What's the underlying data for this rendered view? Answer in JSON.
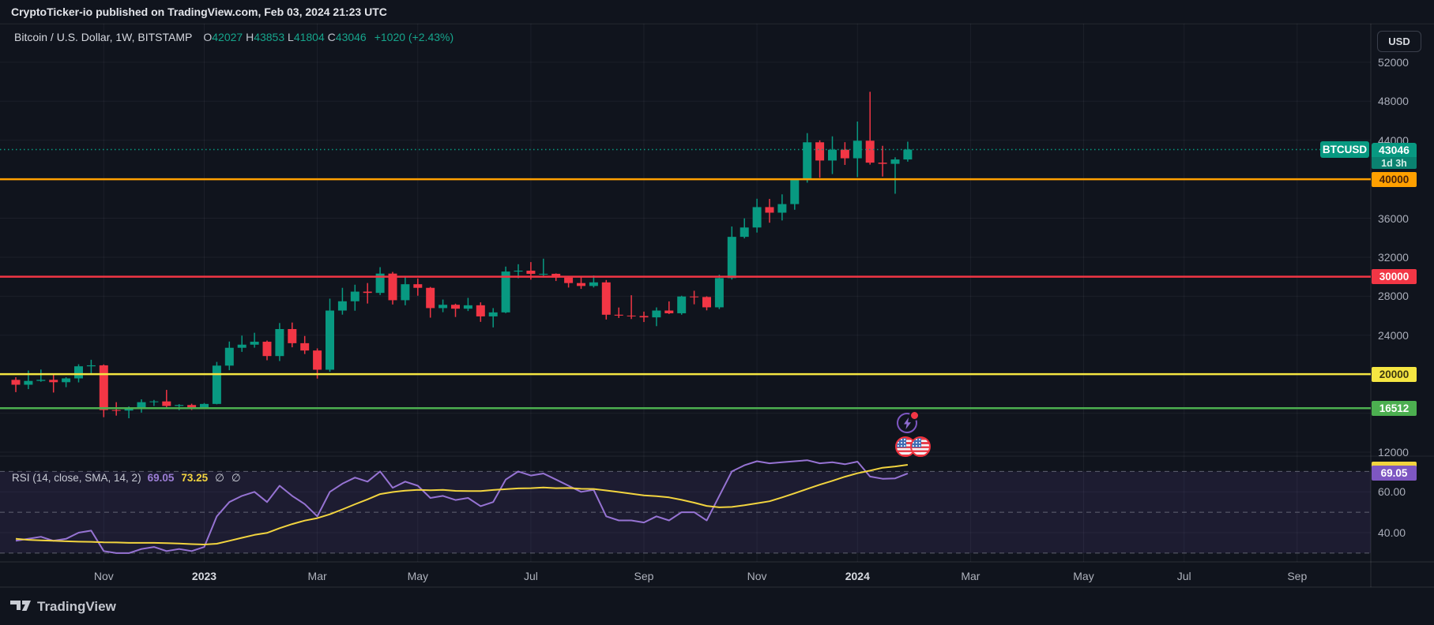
{
  "attribution": "CryptoTicker-io published on TradingView.com, Feb 03, 2024 21:23 UTC",
  "currency_selector": "USD",
  "symbol_legend": {
    "title": "Bitcoin / U.S. Dollar, 1W, BITSTAMP",
    "open_label": "O",
    "open": "42027",
    "high_label": "H",
    "high": "43853",
    "low_label": "L",
    "low": "41804",
    "close_label": "C",
    "close": "43046",
    "change": "+1020 (+2.43%)"
  },
  "rsi_legend": {
    "title": "RSI (14, close, SMA, 14, 2)",
    "rsi_value": "69.05",
    "sma_value": "73.25",
    "band_upper": "∅",
    "band_lower": "∅"
  },
  "price_axis": {
    "symbol_badge": "BTCUSD",
    "last_price": "43046",
    "countdown": "1d 3h",
    "level_labels": {
      "orange": "40000",
      "red": "30000",
      "yellow": "20000",
      "green": "16512"
    },
    "rsi_badge": "69.05",
    "ticks": [
      "52000",
      "48000",
      "44000",
      "36000",
      "32000",
      "28000",
      "24000",
      "12000"
    ],
    "rsi_ticks": [
      "60.00",
      "40.00"
    ]
  },
  "footer": {
    "brand": "TradingView"
  },
  "markers": {
    "flash_icon": "idea-flash-marker with red notification dot",
    "flag_icons": "two US economic event markers"
  },
  "chart_data": {
    "type": "candlestick",
    "symbol": "BTCUSD",
    "interval": "1W",
    "exchange": "BITSTAMP",
    "title": "Bitcoin / U.S. Dollar weekly chart with RSI",
    "ohlc_current": {
      "open": 42027,
      "high": 43853,
      "low": 41804,
      "close": 43046,
      "change": 1020,
      "change_pct": 2.43
    },
    "first_candle_week": "2022-09-19",
    "last_candle_week": "2024-01-29",
    "price_grid": [
      52000,
      48000,
      44000,
      40000,
      36000,
      32000,
      28000,
      24000,
      20000,
      16000,
      12000
    ],
    "time_labels": [
      {
        "text": "Nov",
        "week": 7,
        "bold": false
      },
      {
        "text": "2023",
        "week": 15,
        "bold": true
      },
      {
        "text": "Mar",
        "week": 24,
        "bold": false
      },
      {
        "text": "May",
        "week": 32,
        "bold": false
      },
      {
        "text": "Jul",
        "week": 41,
        "bold": false
      },
      {
        "text": "Sep",
        "week": 50,
        "bold": false
      },
      {
        "text": "Nov",
        "week": 59,
        "bold": false
      },
      {
        "text": "2024",
        "week": 67,
        "bold": true
      },
      {
        "text": "Mar",
        "week": 76,
        "bold": false
      },
      {
        "text": "May",
        "week": 85,
        "bold": false
      },
      {
        "text": "Jul",
        "week": 93,
        "bold": false
      },
      {
        "text": "Sep",
        "week": 102,
        "bold": false
      }
    ],
    "horizontal_levels": [
      {
        "price": 40000,
        "color": "#FFA000"
      },
      {
        "price": 30000,
        "color": "#F23645"
      },
      {
        "price": 20000,
        "color": "#F5E642"
      },
      {
        "price": 16512,
        "color": "#4CAF50"
      }
    ],
    "current_price_line": {
      "price": 43046,
      "color": "#089981",
      "style": "dotted"
    },
    "colors": {
      "up": "#089981",
      "down": "#F23645",
      "background": "#10141d",
      "grid": "rgba(240,243,250,0.055)"
    },
    "candles_weekly_ohlc": [
      [
        19420,
        19690,
        18160,
        18920
      ],
      [
        18920,
        20380,
        18470,
        19310
      ],
      [
        19310,
        20480,
        19220,
        19420
      ],
      [
        19420,
        19950,
        18120,
        19180
      ],
      [
        19180,
        19690,
        18670,
        19570
      ],
      [
        19570,
        21020,
        19160,
        20810
      ],
      [
        20810,
        21480,
        20040,
        20910
      ],
      [
        20910,
        21000,
        15590,
        16320
      ],
      [
        16320,
        17130,
        15750,
        16270
      ],
      [
        16270,
        16700,
        15480,
        16440
      ],
      [
        16440,
        17420,
        16060,
        17130
      ],
      [
        17130,
        17360,
        16740,
        17210
      ],
      [
        17210,
        18390,
        16530,
        16740
      ],
      [
        16740,
        16930,
        16310,
        16840
      ],
      [
        16840,
        16970,
        16330,
        16540
      ],
      [
        16540,
        17040,
        16480,
        16950
      ],
      [
        16950,
        21260,
        16910,
        20880
      ],
      [
        20880,
        23350,
        20410,
        22710
      ],
      [
        22710,
        23960,
        22290,
        23030
      ],
      [
        23030,
        24250,
        22720,
        23330
      ],
      [
        23330,
        23450,
        21430,
        21860
      ],
      [
        21860,
        25250,
        21350,
        24630
      ],
      [
        24630,
        25300,
        22760,
        23180
      ],
      [
        23180,
        23920,
        22070,
        22430
      ],
      [
        22430,
        22650,
        19550,
        20460
      ],
      [
        20460,
        27750,
        20250,
        26530
      ],
      [
        26530,
        28860,
        26110,
        27480
      ],
      [
        27480,
        29180,
        26510,
        28470
      ],
      [
        28470,
        29350,
        27250,
        28340
      ],
      [
        28340,
        30980,
        28120,
        30320
      ],
      [
        30320,
        30490,
        27150,
        27590
      ],
      [
        27590,
        29950,
        27070,
        29230
      ],
      [
        29230,
        29820,
        28050,
        28860
      ],
      [
        28860,
        28950,
        25800,
        26780
      ],
      [
        26780,
        27660,
        26360,
        27120
      ],
      [
        27120,
        27230,
        25870,
        26720
      ],
      [
        26720,
        27830,
        26480,
        27070
      ],
      [
        27070,
        27370,
        25370,
        25930
      ],
      [
        25930,
        26780,
        24800,
        26340
      ],
      [
        26340,
        31040,
        26260,
        30530
      ],
      [
        30530,
        31280,
        29840,
        30620
      ],
      [
        30620,
        31500,
        29700,
        30290
      ],
      [
        30290,
        31850,
        29910,
        30300
      ],
      [
        30300,
        30340,
        29560,
        29910
      ],
      [
        29910,
        29980,
        28890,
        29350
      ],
      [
        29350,
        30050,
        28750,
        29050
      ],
      [
        29050,
        30130,
        28900,
        29420
      ],
      [
        29420,
        29660,
        25610,
        26100
      ],
      [
        26100,
        26840,
        25770,
        26010
      ],
      [
        26010,
        28100,
        25660,
        25970
      ],
      [
        25970,
        26420,
        25350,
        25830
      ],
      [
        25830,
        26850,
        24930,
        26530
      ],
      [
        26530,
        27470,
        26170,
        26250
      ],
      [
        26250,
        28050,
        26100,
        27970
      ],
      [
        27970,
        28560,
        27170,
        27920
      ],
      [
        27920,
        27990,
        26550,
        26860
      ],
      [
        26860,
        30200,
        26680,
        29860
      ],
      [
        29860,
        35150,
        29710,
        34090
      ],
      [
        34090,
        35990,
        33930,
        35050
      ],
      [
        35050,
        38000,
        34530,
        37140
      ],
      [
        37140,
        37980,
        35540,
        36570
      ],
      [
        36570,
        38450,
        35770,
        37450
      ],
      [
        37450,
        39990,
        36870,
        39970
      ],
      [
        39970,
        44730,
        39650,
        43790
      ],
      [
        43790,
        43990,
        40150,
        41920
      ],
      [
        41920,
        44400,
        40530,
        43030
      ],
      [
        43030,
        43800,
        41470,
        42150
      ],
      [
        42150,
        45920,
        40220,
        43950
      ],
      [
        43950,
        48970,
        41500,
        41700
      ],
      [
        41700,
        43430,
        40280,
        41580
      ],
      [
        41580,
        42250,
        38510,
        42030
      ],
      [
        42027,
        43853,
        41804,
        43046
      ]
    ],
    "rsi": {
      "guides": [
        70,
        50,
        30
      ],
      "band": [
        30,
        70
      ],
      "color": "#9673D3",
      "sma_color": "#F2D43F",
      "values": [
        36,
        37,
        38,
        36,
        37,
        40,
        41,
        31,
        30,
        30,
        32,
        33,
        31,
        32,
        31,
        33,
        48,
        55,
        58,
        60,
        55,
        63,
        58,
        54,
        48,
        60,
        64,
        67,
        65,
        70,
        62,
        65,
        63,
        57,
        58,
        56,
        57,
        53,
        55,
        66,
        70,
        68,
        69,
        66,
        63,
        60,
        61,
        48,
        46,
        46,
        45,
        48,
        46,
        50,
        50,
        46,
        58,
        70,
        73,
        75,
        74,
        74.5,
        75,
        75.5,
        74,
        74.5,
        73.5,
        74.8,
        67.5,
        66.4,
        66.6,
        69.05
      ],
      "sma": [
        37,
        36.5,
        36.2,
        36,
        35.8,
        35.6,
        35.5,
        35.3,
        35.2,
        35,
        35,
        35,
        34.9,
        34.7,
        34.4,
        34.2,
        34.6,
        36,
        37.5,
        38.9,
        39.9,
        42.2,
        44.2,
        45.9,
        47.1,
        49,
        51.4,
        53.9,
        56.3,
        58.9,
        59.9,
        60.6,
        61,
        60.8,
        61,
        60.5,
        60.4,
        60.4,
        60.9,
        61.3,
        61.7,
        61.8,
        62.1,
        61.8,
        61.9,
        61.5,
        61.4,
        60.7,
        59.9,
        59.1,
        58.3,
        57.9,
        57.3,
        56.1,
        54.7,
        53.1,
        52.4,
        52.6,
        53.4,
        54.4,
        55.4,
        57.3,
        59.3,
        61.4,
        63.5,
        65.4,
        67.4,
        69.1,
        70.4,
        71.8,
        72.45,
        73.25
      ]
    }
  }
}
